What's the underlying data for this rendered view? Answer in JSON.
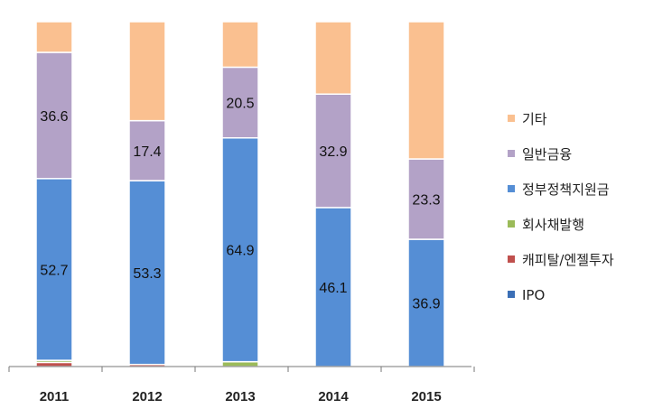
{
  "chart_data": {
    "type": "bar",
    "stacked": true,
    "normalized_percent": true,
    "categories": [
      "2011",
      "2012",
      "2013",
      "2014",
      "2015"
    ],
    "series": [
      {
        "name": "IPO",
        "color": "#3B6FB6",
        "values": [
          0,
          0,
          0,
          0,
          0
        ]
      },
      {
        "name": "캐피탈/엔젤투자",
        "color": "#C0504D",
        "values": [
          1.2,
          0.6,
          0,
          0,
          0
        ]
      },
      {
        "name": "회사채발행",
        "color": "#9BBB59",
        "values": [
          0.6,
          0,
          1.4,
          0,
          0
        ]
      },
      {
        "name": "정부정책지원금",
        "color": "#558ED5",
        "values": [
          52.7,
          53.3,
          64.9,
          46.1,
          36.9
        ],
        "label_values": [
          "52.7",
          "53.3",
          "64.9",
          "46.1",
          "36.9"
        ]
      },
      {
        "name": "일반금융",
        "color": "#B3A2C7",
        "values": [
          36.6,
          17.4,
          20.5,
          32.9,
          23.3
        ],
        "label_values": [
          "36.6",
          "17.4",
          "20.5",
          "32.9",
          "23.3"
        ]
      },
      {
        "name": "기타",
        "color": "#FAC090",
        "values": [
          8.9,
          28.7,
          13.2,
          21.0,
          39.8
        ]
      }
    ],
    "legend_order": [
      "기타",
      "일반금융",
      "정부정책지원금",
      "회사채발행",
      "캐피탈/엔젤투자",
      "IPO"
    ],
    "ylim": [
      0,
      100
    ],
    "grid": false,
    "legend_position": "right"
  }
}
